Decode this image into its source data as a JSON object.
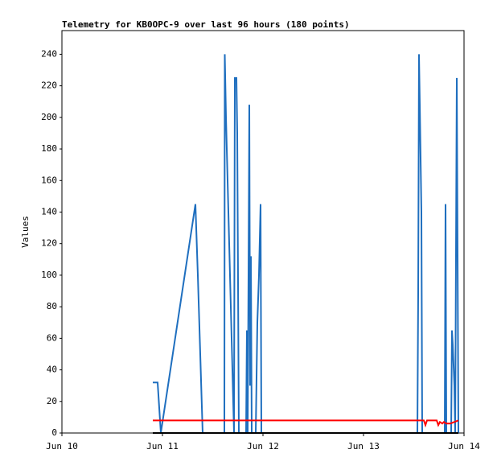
{
  "chart_data": {
    "type": "line",
    "title": "Telemetry for KB0OPC-9 over last 96 hours (180 points)",
    "y_label": "Values",
    "xlim": [
      0,
      4
    ],
    "ylim": [
      0,
      255
    ],
    "xticks": [
      {
        "value": 0,
        "label": "Jun 10"
      },
      {
        "value": 1,
        "label": "Jun 11"
      },
      {
        "value": 2,
        "label": "Jun 12"
      },
      {
        "value": 3,
        "label": "Jun 13"
      },
      {
        "value": 4,
        "label": "Jun 14"
      }
    ],
    "yticks": [
      0,
      20,
      40,
      60,
      80,
      100,
      120,
      140,
      160,
      180,
      200,
      220,
      240
    ],
    "grid": false,
    "series": [
      {
        "color": "#000000",
        "x": [
          0.904,
          3.944
        ],
        "values": [
          0,
          0
        ]
      },
      {
        "color": "#ff0000",
        "x": [
          0.904,
          3.6,
          3.616,
          3.632,
          3.728,
          3.744,
          3.76,
          3.784,
          3.8,
          3.824,
          3.864,
          3.904,
          3.944
        ],
        "values": [
          8,
          8,
          5,
          8,
          8,
          5,
          7,
          6,
          7,
          6,
          6,
          7,
          8
        ]
      },
      {
        "color": "#1f6fbf",
        "x": [
          0.904,
          0.952,
          0.984,
          1.328,
          1.352,
          1.4,
          1.616,
          1.62,
          1.632,
          1.664,
          1.688,
          1.712,
          1.72,
          1.736,
          1.744,
          1.76,
          1.832,
          1.84,
          1.848,
          1.856,
          1.864,
          1.872,
          1.88,
          1.888,
          1.928,
          1.944,
          1.96,
          1.976,
          1.984,
          3.536,
          3.544,
          3.552,
          3.56,
          3.576,
          3.584,
          3.808,
          3.816,
          3.824,
          3.872,
          3.88,
          3.888,
          3.904,
          3.912,
          3.928,
          3.936,
          3.944
        ],
        "values": [
          32,
          32,
          0,
          145,
          100,
          0,
          0,
          240,
          200,
          120,
          60,
          0,
          225,
          225,
          190,
          0,
          0,
          65,
          0,
          100,
          208,
          30,
          112,
          0,
          0,
          70,
          100,
          145,
          0,
          0,
          88,
          240,
          208,
          140,
          0,
          0,
          145,
          0,
          0,
          65,
          56,
          30,
          0,
          225,
          112,
          0
        ]
      }
    ]
  }
}
